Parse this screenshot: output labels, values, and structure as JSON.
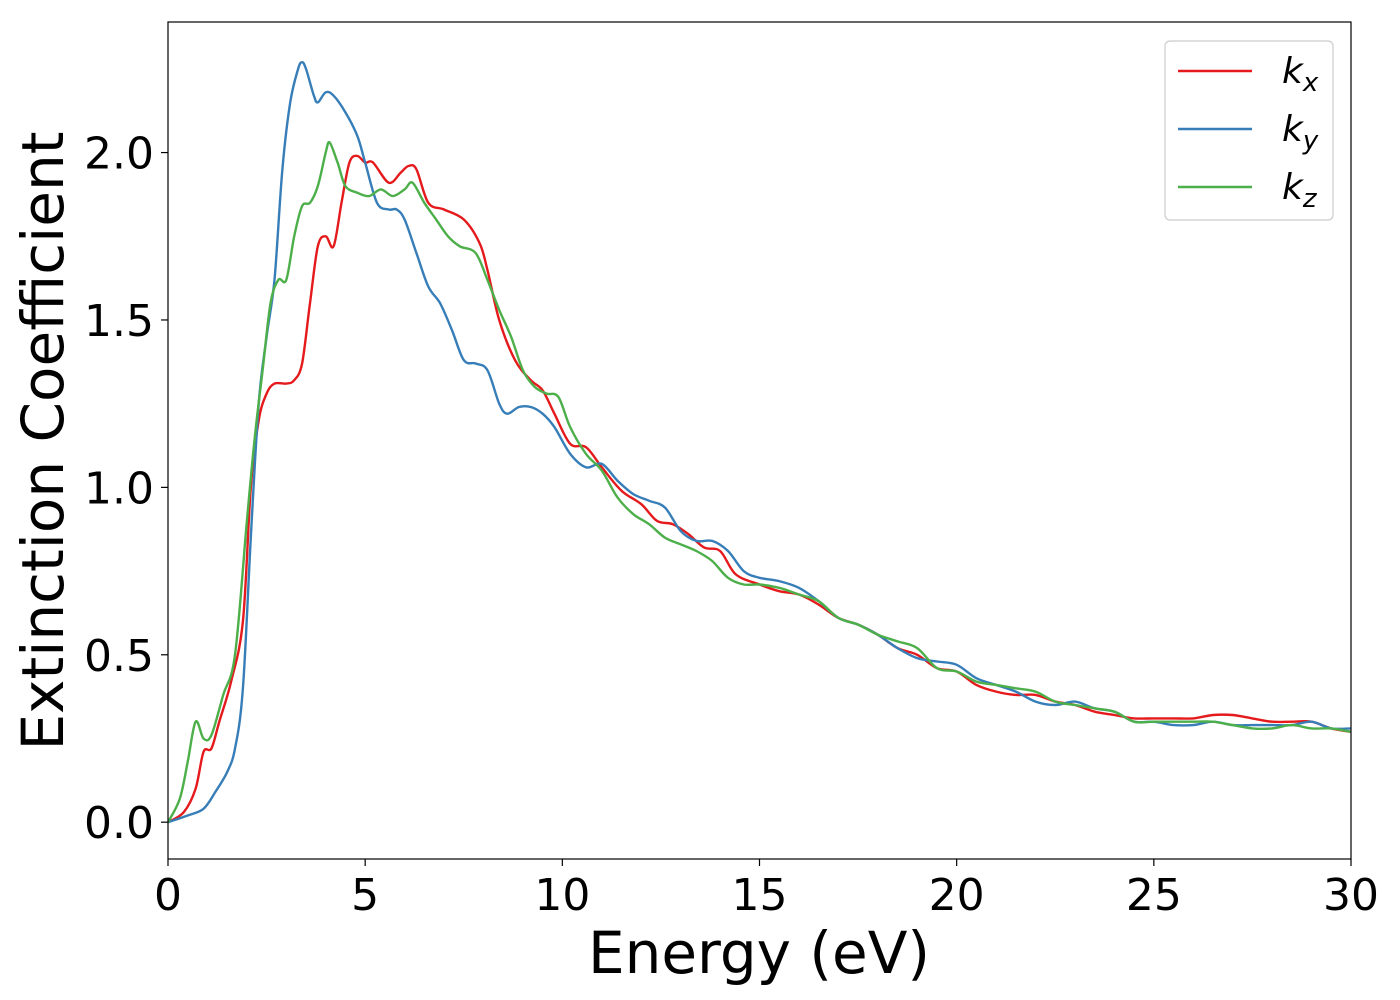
{
  "chart_data": {
    "type": "line",
    "xlabel": "Energy (eV)",
    "ylabel": "Extinction Coefficient",
    "xlim": [
      0,
      30
    ],
    "ylim": [
      -0.11,
      2.39
    ],
    "x_ticks": [
      "0",
      "5",
      "10",
      "15",
      "20",
      "25",
      "30"
    ],
    "y_ticks": [
      "0.0",
      "0.5",
      "1.0",
      "1.5",
      "2.0"
    ],
    "x_tick_values": [
      0,
      5,
      10,
      15,
      20,
      25,
      30
    ],
    "y_tick_values": [
      0.0,
      0.5,
      1.0,
      1.5,
      2.0
    ],
    "grid": false,
    "legend_position": "top-right",
    "series": [
      {
        "name": "k_x",
        "label_main": "k",
        "label_sub": "x",
        "color": "#e41a1c",
        "points": [
          [
            0,
            0.0
          ],
          [
            0.4,
            0.03
          ],
          [
            0.7,
            0.1
          ],
          [
            0.9,
            0.21
          ],
          [
            1.1,
            0.22
          ],
          [
            1.3,
            0.3
          ],
          [
            1.6,
            0.42
          ],
          [
            1.9,
            0.6
          ],
          [
            2.1,
            1.0
          ],
          [
            2.3,
            1.2
          ],
          [
            2.5,
            1.28
          ],
          [
            2.7,
            1.31
          ],
          [
            3.0,
            1.31
          ],
          [
            3.2,
            1.32
          ],
          [
            3.4,
            1.37
          ],
          [
            3.6,
            1.55
          ],
          [
            3.8,
            1.72
          ],
          [
            4.0,
            1.75
          ],
          [
            4.2,
            1.72
          ],
          [
            4.4,
            1.85
          ],
          [
            4.6,
            1.97
          ],
          [
            4.8,
            1.99
          ],
          [
            5.0,
            1.97
          ],
          [
            5.2,
            1.97
          ],
          [
            5.6,
            1.91
          ],
          [
            5.9,
            1.94
          ],
          [
            6.1,
            1.96
          ],
          [
            6.3,
            1.95
          ],
          [
            6.6,
            1.85
          ],
          [
            7.0,
            1.83
          ],
          [
            7.5,
            1.8
          ],
          [
            7.9,
            1.73
          ],
          [
            8.1,
            1.65
          ],
          [
            8.4,
            1.5
          ],
          [
            8.8,
            1.38
          ],
          [
            9.2,
            1.32
          ],
          [
            9.5,
            1.29
          ],
          [
            9.8,
            1.22
          ],
          [
            10.2,
            1.13
          ],
          [
            10.6,
            1.12
          ],
          [
            11.0,
            1.06
          ],
          [
            11.5,
            0.99
          ],
          [
            12.0,
            0.95
          ],
          [
            12.4,
            0.9
          ],
          [
            12.8,
            0.89
          ],
          [
            13.2,
            0.86
          ],
          [
            13.6,
            0.82
          ],
          [
            14.0,
            0.81
          ],
          [
            14.4,
            0.74
          ],
          [
            15.0,
            0.71
          ],
          [
            15.5,
            0.69
          ],
          [
            16.0,
            0.68
          ],
          [
            16.5,
            0.65
          ],
          [
            17.0,
            0.61
          ],
          [
            17.5,
            0.59
          ],
          [
            18.0,
            0.56
          ],
          [
            18.5,
            0.52
          ],
          [
            19.0,
            0.5
          ],
          [
            19.5,
            0.46
          ],
          [
            20.0,
            0.45
          ],
          [
            20.5,
            0.41
          ],
          [
            21.0,
            0.39
          ],
          [
            21.5,
            0.38
          ],
          [
            22.0,
            0.38
          ],
          [
            22.5,
            0.36
          ],
          [
            23.0,
            0.35
          ],
          [
            23.5,
            0.33
          ],
          [
            24.0,
            0.32
          ],
          [
            24.5,
            0.31
          ],
          [
            25.0,
            0.31
          ],
          [
            25.5,
            0.31
          ],
          [
            26.0,
            0.31
          ],
          [
            26.5,
            0.32
          ],
          [
            27.0,
            0.32
          ],
          [
            27.5,
            0.31
          ],
          [
            28.0,
            0.3
          ],
          [
            28.5,
            0.3
          ],
          [
            29.0,
            0.3
          ],
          [
            29.5,
            0.28
          ],
          [
            30.0,
            0.27
          ]
        ]
      },
      {
        "name": "k_y",
        "label_main": "k",
        "label_sub": "y",
        "color": "#377eb8",
        "points": [
          [
            0,
            0.0
          ],
          [
            0.5,
            0.02
          ],
          [
            0.9,
            0.04
          ],
          [
            1.2,
            0.09
          ],
          [
            1.5,
            0.15
          ],
          [
            1.7,
            0.22
          ],
          [
            1.9,
            0.4
          ],
          [
            2.1,
            0.85
          ],
          [
            2.3,
            1.25
          ],
          [
            2.5,
            1.45
          ],
          [
            2.7,
            1.62
          ],
          [
            2.9,
            1.95
          ],
          [
            3.1,
            2.15
          ],
          [
            3.3,
            2.25
          ],
          [
            3.4,
            2.27
          ],
          [
            3.5,
            2.25
          ],
          [
            3.7,
            2.17
          ],
          [
            3.8,
            2.15
          ],
          [
            4.0,
            2.18
          ],
          [
            4.2,
            2.17
          ],
          [
            4.5,
            2.12
          ],
          [
            4.8,
            2.05
          ],
          [
            5.0,
            1.97
          ],
          [
            5.3,
            1.85
          ],
          [
            5.6,
            1.83
          ],
          [
            5.8,
            1.83
          ],
          [
            6.0,
            1.8
          ],
          [
            6.3,
            1.7
          ],
          [
            6.6,
            1.6
          ],
          [
            6.9,
            1.55
          ],
          [
            7.2,
            1.47
          ],
          [
            7.5,
            1.38
          ],
          [
            7.8,
            1.37
          ],
          [
            8.1,
            1.35
          ],
          [
            8.4,
            1.25
          ],
          [
            8.6,
            1.22
          ],
          [
            8.9,
            1.24
          ],
          [
            9.2,
            1.24
          ],
          [
            9.5,
            1.22
          ],
          [
            9.8,
            1.18
          ],
          [
            10.2,
            1.1
          ],
          [
            10.6,
            1.06
          ],
          [
            11.0,
            1.07
          ],
          [
            11.4,
            1.02
          ],
          [
            11.8,
            0.98
          ],
          [
            12.2,
            0.96
          ],
          [
            12.6,
            0.94
          ],
          [
            13.0,
            0.87
          ],
          [
            13.4,
            0.84
          ],
          [
            13.8,
            0.84
          ],
          [
            14.2,
            0.81
          ],
          [
            14.6,
            0.75
          ],
          [
            15.0,
            0.73
          ],
          [
            15.5,
            0.72
          ],
          [
            16.0,
            0.7
          ],
          [
            16.5,
            0.66
          ],
          [
            17.0,
            0.61
          ],
          [
            17.5,
            0.59
          ],
          [
            18.0,
            0.56
          ],
          [
            18.5,
            0.52
          ],
          [
            19.0,
            0.49
          ],
          [
            19.5,
            0.48
          ],
          [
            20.0,
            0.47
          ],
          [
            20.5,
            0.43
          ],
          [
            21.0,
            0.41
          ],
          [
            21.5,
            0.39
          ],
          [
            22.0,
            0.36
          ],
          [
            22.5,
            0.35
          ],
          [
            23.0,
            0.36
          ],
          [
            23.5,
            0.34
          ],
          [
            24.0,
            0.33
          ],
          [
            24.5,
            0.3
          ],
          [
            25.0,
            0.3
          ],
          [
            25.5,
            0.29
          ],
          [
            26.0,
            0.29
          ],
          [
            26.5,
            0.3
          ],
          [
            27.0,
            0.29
          ],
          [
            27.5,
            0.29
          ],
          [
            28.0,
            0.29
          ],
          [
            28.5,
            0.29
          ],
          [
            29.0,
            0.3
          ],
          [
            29.5,
            0.28
          ],
          [
            30.0,
            0.28
          ]
        ]
      },
      {
        "name": "k_z",
        "label_main": "k",
        "label_sub": "z",
        "color": "#4daf4a",
        "points": [
          [
            0,
            0.0
          ],
          [
            0.3,
            0.07
          ],
          [
            0.5,
            0.18
          ],
          [
            0.7,
            0.3
          ],
          [
            0.9,
            0.25
          ],
          [
            1.1,
            0.26
          ],
          [
            1.4,
            0.38
          ],
          [
            1.7,
            0.5
          ],
          [
            2.0,
            0.9
          ],
          [
            2.2,
            1.15
          ],
          [
            2.4,
            1.35
          ],
          [
            2.6,
            1.55
          ],
          [
            2.8,
            1.62
          ],
          [
            3.0,
            1.62
          ],
          [
            3.2,
            1.75
          ],
          [
            3.4,
            1.84
          ],
          [
            3.6,
            1.85
          ],
          [
            3.8,
            1.9
          ],
          [
            4.0,
            2.0
          ],
          [
            4.1,
            2.03
          ],
          [
            4.3,
            1.97
          ],
          [
            4.5,
            1.9
          ],
          [
            4.8,
            1.88
          ],
          [
            5.1,
            1.87
          ],
          [
            5.4,
            1.89
          ],
          [
            5.7,
            1.87
          ],
          [
            6.0,
            1.89
          ],
          [
            6.2,
            1.91
          ],
          [
            6.5,
            1.85
          ],
          [
            6.8,
            1.8
          ],
          [
            7.1,
            1.75
          ],
          [
            7.4,
            1.72
          ],
          [
            7.8,
            1.7
          ],
          [
            8.1,
            1.62
          ],
          [
            8.4,
            1.53
          ],
          [
            8.7,
            1.45
          ],
          [
            9.0,
            1.35
          ],
          [
            9.3,
            1.3
          ],
          [
            9.6,
            1.28
          ],
          [
            9.9,
            1.27
          ],
          [
            10.2,
            1.18
          ],
          [
            10.6,
            1.1
          ],
          [
            11.0,
            1.05
          ],
          [
            11.4,
            0.97
          ],
          [
            11.8,
            0.92
          ],
          [
            12.2,
            0.89
          ],
          [
            12.6,
            0.85
          ],
          [
            13.0,
            0.83
          ],
          [
            13.4,
            0.81
          ],
          [
            13.8,
            0.78
          ],
          [
            14.2,
            0.73
          ],
          [
            14.6,
            0.71
          ],
          [
            15.0,
            0.71
          ],
          [
            15.5,
            0.7
          ],
          [
            16.0,
            0.68
          ],
          [
            16.5,
            0.66
          ],
          [
            17.0,
            0.61
          ],
          [
            17.5,
            0.59
          ],
          [
            18.0,
            0.56
          ],
          [
            18.5,
            0.54
          ],
          [
            19.0,
            0.52
          ],
          [
            19.5,
            0.46
          ],
          [
            20.0,
            0.45
          ],
          [
            20.5,
            0.42
          ],
          [
            21.0,
            0.41
          ],
          [
            21.5,
            0.4
          ],
          [
            22.0,
            0.39
          ],
          [
            22.5,
            0.36
          ],
          [
            23.0,
            0.35
          ],
          [
            23.5,
            0.34
          ],
          [
            24.0,
            0.33
          ],
          [
            24.5,
            0.3
          ],
          [
            25.0,
            0.3
          ],
          [
            25.5,
            0.3
          ],
          [
            26.0,
            0.3
          ],
          [
            26.5,
            0.3
          ],
          [
            27.0,
            0.29
          ],
          [
            27.5,
            0.28
          ],
          [
            28.0,
            0.28
          ],
          [
            28.5,
            0.29
          ],
          [
            29.0,
            0.28
          ],
          [
            29.5,
            0.28
          ],
          [
            30.0,
            0.27
          ]
        ]
      }
    ]
  }
}
